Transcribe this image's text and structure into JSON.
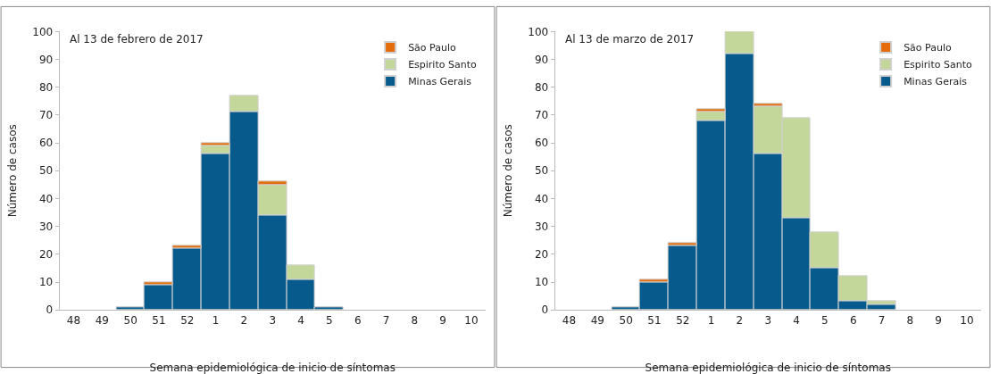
{
  "chart_data": [
    {
      "type": "bar",
      "title": "Al 13 de febrero de 2017",
      "xlabel": "Semana epidemiológica de inicio de síntomas",
      "ylabel": "Número de casos",
      "stacked": true,
      "legend": "top right",
      "ylim": [
        0,
        100
      ],
      "yticks": [
        0,
        10,
        20,
        30,
        40,
        50,
        60,
        70,
        80,
        90,
        100
      ],
      "categories": [
        "48",
        "49",
        "50",
        "51",
        "52",
        "1",
        "2",
        "3",
        "4",
        "5",
        "6",
        "7",
        "8",
        "9",
        "10"
      ],
      "series": [
        {
          "name": "Minas Gerais",
          "color": "#075b8c",
          "values": [
            0,
            0,
            1,
            9,
            22,
            56,
            71,
            34,
            11,
            1,
            0,
            0,
            0,
            0,
            0
          ]
        },
        {
          "name": "Espirito Santo",
          "color": "#c4d79b",
          "values": [
            0,
            0,
            0,
            0,
            0,
            3,
            6,
            11,
            5,
            0,
            0,
            0,
            0,
            0,
            0
          ]
        },
        {
          "name": "São Paulo",
          "color": "#e46c0a",
          "values": [
            0,
            0,
            0,
            1,
            1,
            1,
            0,
            1,
            0,
            0,
            0,
            0,
            0,
            0,
            0
          ]
        }
      ]
    },
    {
      "type": "bar",
      "title": "Al 13 de marzo de 2017",
      "xlabel": "Semana epidemiológica de inicio de síntomas",
      "ylabel": "Número de casos",
      "stacked": true,
      "legend": "top right",
      "ylim": [
        0,
        100
      ],
      "yticks": [
        0,
        10,
        20,
        30,
        40,
        50,
        60,
        70,
        80,
        90,
        100
      ],
      "categories": [
        "48",
        "49",
        "50",
        "51",
        "52",
        "1",
        "2",
        "3",
        "4",
        "5",
        "6",
        "7",
        "8",
        "9",
        "10"
      ],
      "series": [
        {
          "name": "Minas Gerais",
          "color": "#075b8c",
          "values": [
            0,
            0,
            1,
            10,
            23,
            68,
            92,
            56,
            33,
            15,
            3,
            2,
            0,
            0,
            0
          ]
        },
        {
          "name": "Espirito Santo",
          "color": "#c4d79b",
          "values": [
            0,
            0,
            0,
            0,
            0,
            3,
            8,
            17,
            36,
            13,
            9,
            1,
            0,
            0,
            0
          ]
        },
        {
          "name": "São Paulo",
          "color": "#e46c0a",
          "values": [
            0,
            0,
            0,
            1,
            1,
            1,
            0,
            1,
            0,
            0,
            0,
            0,
            0,
            0,
            0
          ]
        }
      ]
    }
  ]
}
